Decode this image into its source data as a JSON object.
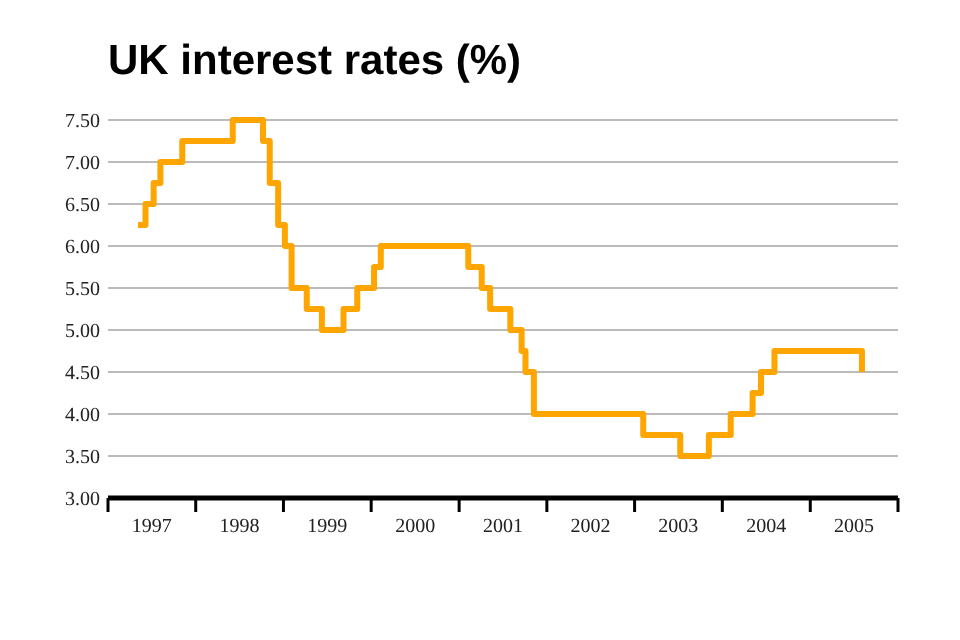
{
  "chart_data": {
    "type": "step",
    "title": "UK interest rates (%)",
    "x": [
      "1997-05-06",
      "1997-06-06",
      "1997-07-10",
      "1997-08-07",
      "1997-11-06",
      "1998-06-04",
      "1998-10-08",
      "1998-11-05",
      "1998-12-10",
      "1999-01-07",
      "1999-02-04",
      "1999-04-08",
      "1999-06-10",
      "1999-09-08",
      "1999-11-04",
      "2000-01-13",
      "2000-02-10",
      "2001-02-08",
      "2001-04-05",
      "2001-05-10",
      "2001-08-02",
      "2001-09-18",
      "2001-10-04",
      "2001-11-08",
      "2003-02-06",
      "2003-07-10",
      "2003-11-06",
      "2004-02-05",
      "2004-05-06",
      "2004-06-10",
      "2004-08-05",
      "2005-08-04"
    ],
    "series": [
      {
        "color": "#ffa500",
        "values": [
          6.25,
          6.5,
          6.75,
          7.0,
          7.25,
          7.5,
          7.25,
          6.75,
          6.25,
          6.0,
          5.5,
          5.25,
          5.0,
          5.25,
          5.5,
          5.75,
          6.0,
          5.75,
          5.5,
          5.25,
          5.0,
          4.75,
          4.5,
          4.0,
          3.75,
          3.5,
          3.75,
          4.0,
          4.25,
          4.5,
          4.75,
          4.5
        ]
      }
    ],
    "xlim": [
      "1997-01-01",
      "2006-01-01"
    ],
    "xticks": [
      {
        "value": "1997-01-01",
        "label": null
      },
      {
        "value": "1997-07-02",
        "label": "1997"
      },
      {
        "value": "1998-01-01",
        "label": null
      },
      {
        "value": "1998-07-02",
        "label": "1998"
      },
      {
        "value": "1999-01-01",
        "label": null
      },
      {
        "value": "1999-07-02",
        "label": "1999"
      },
      {
        "value": "2000-01-01",
        "label": null
      },
      {
        "value": "2000-07-02",
        "label": "2000"
      },
      {
        "value": "2001-01-01",
        "label": null
      },
      {
        "value": "2001-07-02",
        "label": "2001"
      },
      {
        "value": "2002-01-01",
        "label": null
      },
      {
        "value": "2002-07-02",
        "label": "2002"
      },
      {
        "value": "2003-01-01",
        "label": null
      },
      {
        "value": "2003-07-02",
        "label": "2003"
      },
      {
        "value": "2004-01-01",
        "label": null
      },
      {
        "value": "2004-07-02",
        "label": "2004"
      },
      {
        "value": "2005-01-01",
        "label": null
      },
      {
        "value": "2005-07-02",
        "label": "2005"
      },
      {
        "value": "2006-01-01",
        "label": null
      }
    ],
    "ylim": [
      3,
      7.5
    ],
    "yticks": [
      {
        "value": 3,
        "label": "3.00"
      },
      {
        "value": 3.5,
        "label": "3.50"
      },
      {
        "value": 4,
        "label": "4.00"
      },
      {
        "value": 4.5,
        "label": "4.50"
      },
      {
        "value": 5,
        "label": "5.00"
      },
      {
        "value": 5.5,
        "label": "5.50"
      },
      {
        "value": 6,
        "label": "6.00"
      },
      {
        "value": 6.5,
        "label": "6.50"
      },
      {
        "value": 7,
        "label": "7.00"
      },
      {
        "value": 7.5,
        "label": "7.50"
      }
    ],
    "grid": "y"
  }
}
